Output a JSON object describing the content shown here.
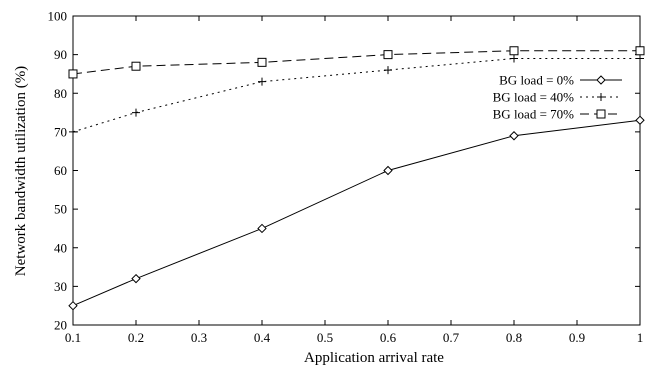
{
  "chart_data": {
    "type": "line",
    "title": "",
    "xlabel": "Application arrival rate",
    "ylabel": "Network bandwidth utilization (%)",
    "xlim": [
      0.1,
      1.0
    ],
    "ylim": [
      20,
      100
    ],
    "xticks": [
      "0.1",
      "0.2",
      "0.3",
      "0.4",
      "0.5",
      "0.6",
      "0.7",
      "0.8",
      "0.9",
      "1"
    ],
    "yticks": [
      "20",
      "30",
      "40",
      "50",
      "60",
      "70",
      "80",
      "90",
      "100"
    ],
    "grid": false,
    "legend_position": "top-right",
    "series": [
      {
        "name": "BG load = 0%",
        "marker": "diamond",
        "line_style": "solid",
        "x": [
          0.1,
          0.2,
          0.4,
          0.6,
          0.8,
          1.0
        ],
        "y": [
          25,
          32,
          45,
          60,
          69,
          73
        ]
      },
      {
        "name": "BG load = 40%",
        "marker": "plus",
        "line_style": "dotted",
        "x": [
          0.1,
          0.2,
          0.4,
          0.6,
          0.8,
          1.0
        ],
        "y": [
          70,
          75,
          83,
          86,
          89,
          89
        ]
      },
      {
        "name": "BG load = 70%",
        "marker": "square",
        "line_style": "dashed",
        "x": [
          0.1,
          0.2,
          0.4,
          0.6,
          0.8,
          1.0
        ],
        "y": [
          85,
          87,
          88,
          90,
          91,
          91
        ]
      }
    ]
  }
}
